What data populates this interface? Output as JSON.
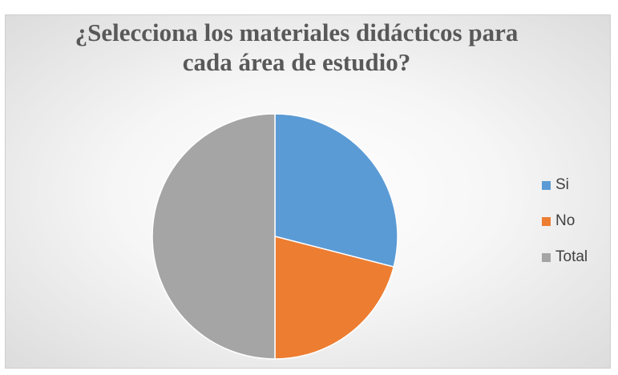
{
  "chart_data": {
    "type": "pie",
    "title_line1": "¿Selecciona los materiales didácticos para",
    "title_line2": "cada área de estudio?",
    "categories": [
      "Si",
      "No",
      "Total"
    ],
    "values": [
      29,
      21,
      50
    ],
    "colors": [
      "#5B9BD5",
      "#ED7D31",
      "#A5A5A5"
    ],
    "start_angle": "top (12 o'clock)",
    "direction": "clockwise",
    "legend_position": "right"
  }
}
